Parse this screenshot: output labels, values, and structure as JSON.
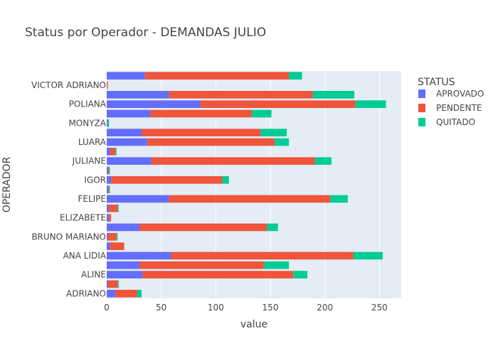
{
  "chart_data": {
    "type": "bar",
    "orientation": "horizontal",
    "barmode": "stack",
    "title": "Status por Operador - DEMANDAS JULIO",
    "xlabel": "value",
    "ylabel": "OPERADOR",
    "xlim": [
      0,
      270
    ],
    "x_ticks": [
      0,
      50,
      100,
      150,
      200,
      250
    ],
    "grid": true,
    "legend_title": "STATUS",
    "legend_position": "right",
    "categories": [
      "ADRIANO",
      "",
      "ALINE",
      "",
      "ANA LIDIA",
      "",
      "BRUNO MARIANO",
      "",
      "ELIZABETE",
      "",
      "FELIPE",
      "",
      "IGOR",
      "",
      "JULIANE",
      "",
      "LUARA",
      "",
      "MONYZA",
      "",
      "POLIANA",
      "",
      "VICTOR ADRIANO",
      ""
    ],
    "series": [
      {
        "name": "APROVADO",
        "color": "#636efa",
        "values": [
          8,
          1,
          33,
          30,
          59,
          3,
          1,
          30,
          2,
          2,
          57,
          1,
          4,
          1,
          41,
          3,
          37,
          32,
          1,
          40,
          86,
          57,
          0,
          35
        ]
      },
      {
        "name": "PENDENTE",
        "color": "#ef553b",
        "values": [
          20,
          9,
          138,
          114,
          167,
          13,
          8,
          117,
          2,
          8,
          148,
          1,
          102,
          1,
          150,
          5,
          117,
          109,
          0,
          93,
          142,
          132,
          1,
          132
        ]
      },
      {
        "name": "QUITADO",
        "color": "#00cc96",
        "values": [
          4,
          1,
          13,
          23,
          27,
          0,
          1,
          10,
          0,
          1,
          16,
          1,
          6,
          1,
          15,
          1,
          13,
          24,
          1,
          18,
          28,
          38,
          0,
          12
        ]
      }
    ]
  }
}
